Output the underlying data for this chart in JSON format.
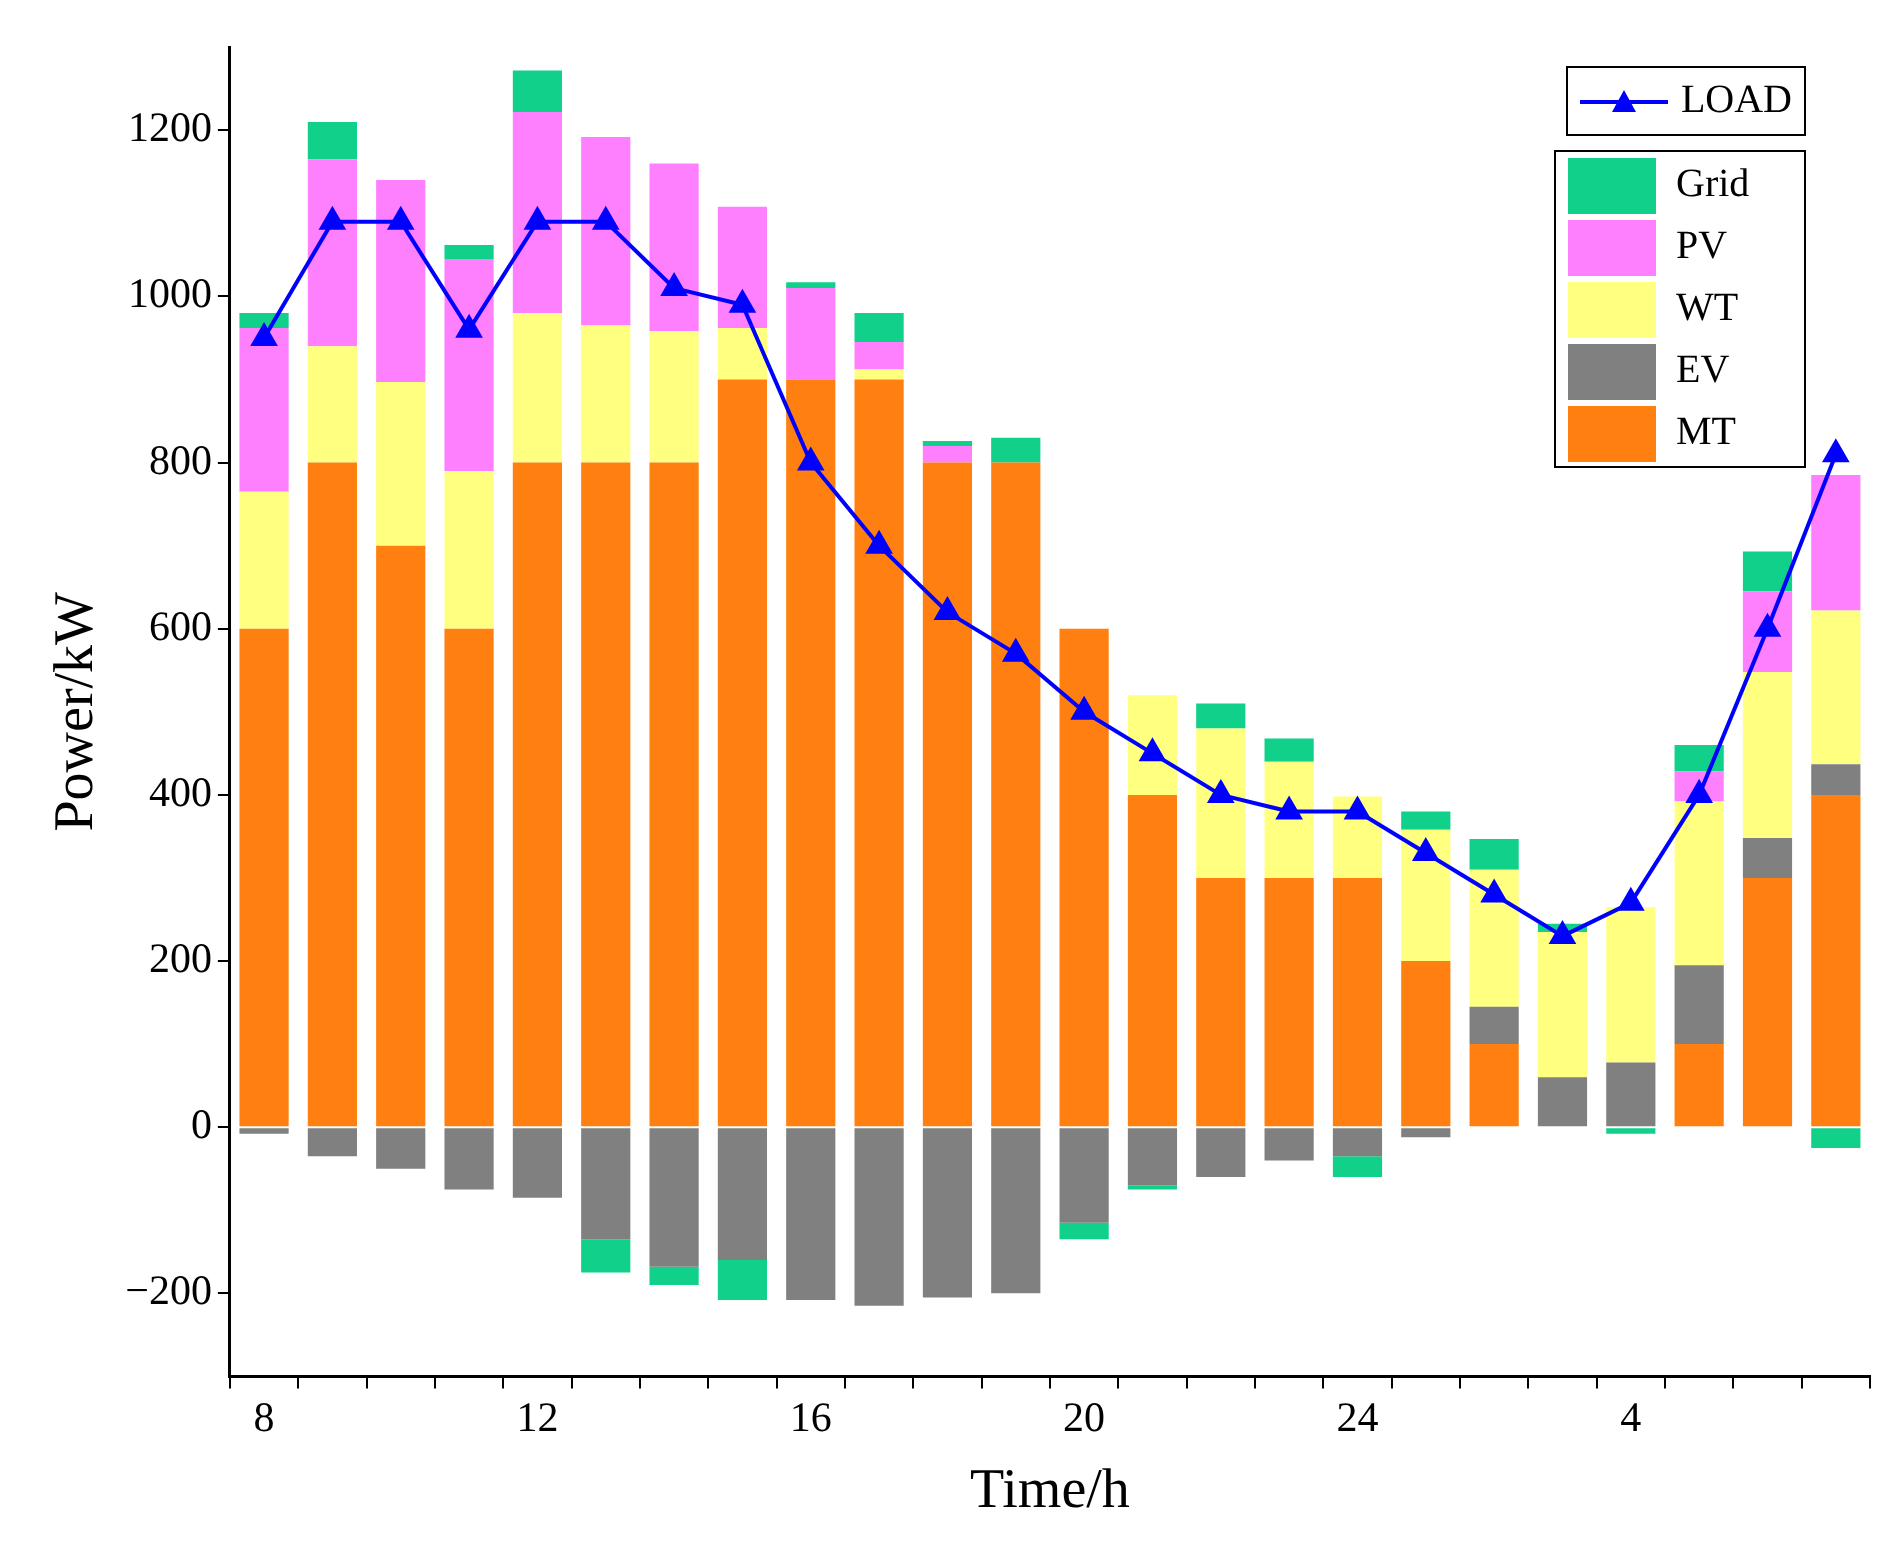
{
  "chart_data": {
    "type": "bar",
    "stacked": true,
    "xlabel": "Time/h",
    "ylabel": "Power/kW",
    "categories": [
      "8",
      null,
      null,
      null,
      "12",
      null,
      null,
      null,
      "16",
      null,
      null,
      null,
      "20",
      null,
      null,
      null,
      "24",
      null,
      null,
      null,
      "4",
      null,
      null,
      null
    ],
    "series": [
      {
        "name": "MT",
        "color": "#ff8010",
        "values": [
          600,
          800,
          700,
          600,
          800,
          800,
          800,
          900,
          900,
          900,
          800,
          800,
          600,
          400,
          300,
          300,
          300,
          200,
          100,
          0,
          0,
          100,
          300,
          400
        ]
      },
      {
        "name": "EV",
        "color": "#808080",
        "values": [
          -8,
          -35,
          -50,
          -75,
          -85,
          -135,
          -168,
          -160,
          -208,
          -215,
          -205,
          -200,
          -115,
          -70,
          -60,
          -40,
          -35,
          -12,
          45,
          60,
          78,
          95,
          48,
          37
        ]
      },
      {
        "name": "WT",
        "color": "#ffff80",
        "values": [
          165,
          140,
          197,
          190,
          180,
          165,
          158,
          62,
          0,
          12,
          0,
          0,
          0,
          120,
          180,
          140,
          98,
          158,
          165,
          175,
          187,
          197,
          200,
          185
        ]
      },
      {
        "name": "PV",
        "color": "#ff80ff",
        "values": [
          197,
          225,
          243,
          255,
          242,
          227,
          202,
          146,
          110,
          33,
          20,
          0,
          0,
          0,
          0,
          0,
          0,
          0,
          0,
          0,
          0,
          36,
          97,
          163
        ]
      },
      {
        "name": "Grid",
        "color": "#10d08a",
        "values": [
          18,
          45,
          0,
          17,
          50,
          -40,
          -22,
          -48,
          7,
          35,
          6,
          30,
          -20,
          -5,
          30,
          28,
          -25,
          22,
          37,
          10,
          -8,
          32,
          48,
          -25
        ]
      },
      {
        "name": "LOAD",
        "type": "line",
        "color": "#0000ff",
        "marker": "triangle",
        "values": [
          950,
          1090,
          1090,
          960,
          1090,
          1090,
          1010,
          990,
          800,
          700,
          620,
          570,
          500,
          450,
          400,
          380,
          380,
          330,
          280,
          230,
          270,
          400,
          600,
          810
        ]
      }
    ],
    "ylim": [
      -300,
      1300
    ],
    "yticks": [
      {
        "value": -200,
        "label": "−200"
      },
      0,
      200,
      400,
      600,
      800,
      1000,
      1200
    ],
    "grid": false,
    "legend": "top right"
  }
}
